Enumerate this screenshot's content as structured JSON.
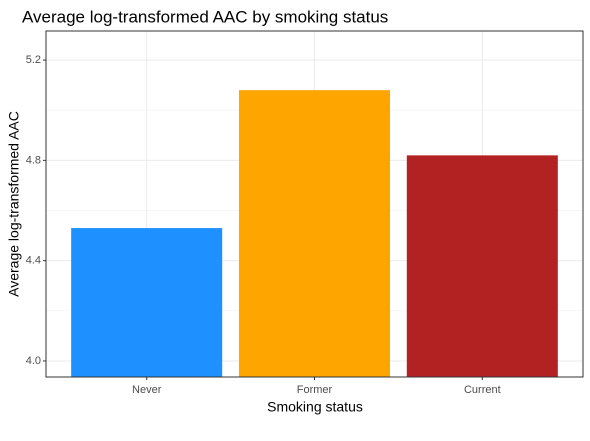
{
  "chart_data": {
    "type": "bar",
    "title": "Average log-transformed AAC by smoking status",
    "x_label": "Smoking status",
    "y_label": "Average log-transformed AAC",
    "categories": [
      "Never",
      "Former",
      "Current"
    ],
    "values": [
      4.53,
      5.08,
      4.82
    ],
    "colors": [
      "#1e90ff",
      "#ffa500",
      "#b22222"
    ],
    "ylim": [
      3.936,
      5.316
    ],
    "yticks": [
      {
        "value": 4.0,
        "label": "4.0"
      },
      {
        "value": 4.4,
        "label": "4.4"
      },
      {
        "value": 4.8,
        "label": "4.8"
      },
      {
        "value": 5.2,
        "label": "5.2"
      }
    ],
    "y_minor_ticks": [
      4.2,
      4.6,
      5.0
    ],
    "grid": true
  }
}
